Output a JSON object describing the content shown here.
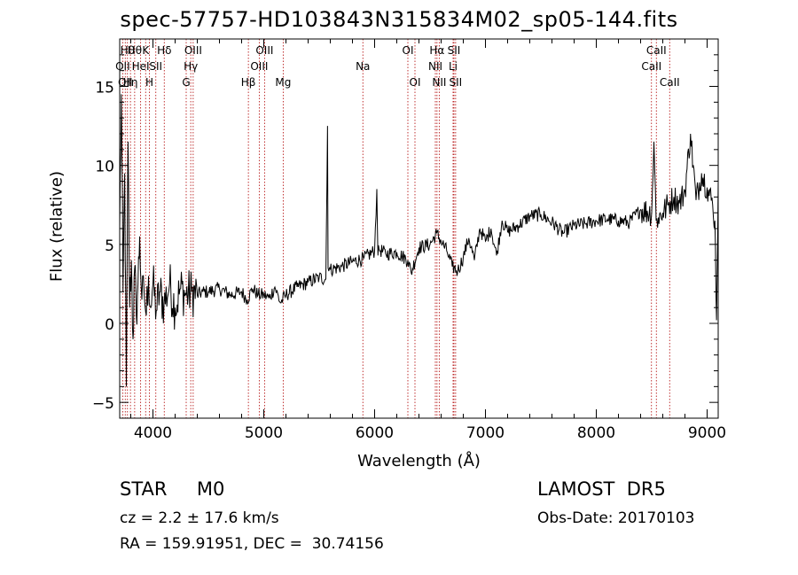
{
  "chart_data": {
    "type": "line",
    "title": "spec-57757-HD103843N315834M02_sp05-144.fits",
    "xlabel": "Wavelength (Å)",
    "ylabel": "Flux (relative)",
    "xlim": [
      3700,
      9100
    ],
    "ylim": [
      -6,
      18
    ],
    "x_ticks": [
      4000,
      5000,
      6000,
      7000,
      8000,
      9000
    ],
    "y_ticks": [
      -5,
      0,
      5,
      10,
      15
    ],
    "grid": false,
    "series": [
      {
        "x": [
          3700,
          3715,
          3730,
          3745,
          3760,
          3775,
          3790,
          3805,
          3820,
          3835,
          3850,
          3865,
          3880,
          3900,
          3920,
          3940,
          3960,
          3980,
          4000,
          4030,
          4060,
          4100,
          4150,
          4200,
          4250,
          4300,
          4350,
          4400,
          4450,
          4500,
          4600,
          4700,
          4800,
          4850,
          4900,
          4950,
          5000,
          5050,
          5100,
          5150,
          5200,
          5300,
          5400,
          5500,
          5560,
          5575,
          5580,
          5600,
          5700,
          5800,
          5900,
          6000,
          6020,
          6030,
          6040,
          6100,
          6200,
          6300,
          6330,
          6400,
          6500,
          6560,
          6600,
          6650,
          6700,
          6750,
          6800,
          6850,
          6900,
          6950,
          7000,
          7050,
          7100,
          7150,
          7200,
          7300,
          7400,
          7500,
          7600,
          7700,
          7800,
          7900,
          8000,
          8100,
          8200,
          8300,
          8400,
          8500,
          8520,
          8540,
          8560,
          8600,
          8650,
          8700,
          8750,
          8800,
          8850,
          8900,
          8950,
          9000,
          9050,
          9070,
          9085,
          9100
        ],
        "y": [
          6.0,
          14.5,
          2.0,
          9.5,
          -4.0,
          11.5,
          1.0,
          4.0,
          -1.0,
          3.5,
          0.5,
          2.5,
          5.5,
          1.5,
          2.0,
          0.5,
          3.0,
          1.0,
          2.5,
          0.8,
          2.0,
          1.2,
          2.5,
          1.0,
          2.2,
          1.8,
          2.0,
          1.8,
          2.0,
          2.0,
          2.2,
          1.8,
          2.0,
          1.5,
          2.2,
          1.8,
          1.8,
          1.6,
          2.3,
          1.3,
          1.8,
          2.3,
          2.6,
          2.9,
          2.8,
          12.5,
          3.5,
          3.4,
          3.6,
          3.9,
          4.1,
          4.6,
          8.5,
          4.3,
          4.7,
          4.4,
          4.5,
          4.0,
          3.2,
          4.8,
          5.0,
          5.7,
          5.2,
          4.6,
          3.6,
          3.3,
          4.2,
          5.4,
          4.0,
          6.0,
          5.2,
          6.0,
          4.3,
          6.5,
          5.8,
          6.2,
          6.8,
          6.9,
          6.4,
          5.7,
          6.2,
          6.3,
          6.5,
          6.6,
          6.5,
          6.4,
          7.2,
          7.0,
          11.5,
          6.5,
          6.7,
          7.0,
          7.5,
          8.0,
          7.6,
          8.4,
          12.0,
          7.8,
          9.5,
          8.6,
          7.5,
          6.5,
          0.2,
          9.0
        ]
      }
    ],
    "line_markers": [
      {
        "wl": 3727,
        "label": "OII",
        "row": 1
      },
      {
        "wl": 3750,
        "label": "OII",
        "row": 2
      },
      {
        "wl": 3770,
        "label": "Hθ",
        "row": 0
      },
      {
        "wl": 3797,
        "label": "Hη",
        "row": 2
      },
      {
        "wl": 3835,
        "label": "Hθ",
        "row": 0
      },
      {
        "wl": 3889,
        "label": "HeI",
        "row": 1
      },
      {
        "wl": 3934,
        "label": "K",
        "row": 0
      },
      {
        "wl": 3968,
        "label": "H",
        "row": 2
      },
      {
        "wl": 4026,
        "label": "SII",
        "row": 1
      },
      {
        "wl": 4102,
        "label": "Hδ",
        "row": 0
      },
      {
        "wl": 4300,
        "label": "G",
        "row": 2
      },
      {
        "wl": 4341,
        "label": "Hγ",
        "row": 1
      },
      {
        "wl": 4363,
        "label": "OIII",
        "row": 0
      },
      {
        "wl": 4861,
        "label": "Hβ",
        "row": 2
      },
      {
        "wl": 4959,
        "label": "OIII",
        "row": 1
      },
      {
        "wl": 5007,
        "label": "OIII",
        "row": 0
      },
      {
        "wl": 5175,
        "label": "Mg",
        "row": 2
      },
      {
        "wl": 5894,
        "label": "Na",
        "row": 1
      },
      {
        "wl": 6300,
        "label": "OI",
        "row": 0
      },
      {
        "wl": 6364,
        "label": "OI",
        "row": 2
      },
      {
        "wl": 6548,
        "label": "NII",
        "row": 1
      },
      {
        "wl": 6563,
        "label": "Hα",
        "row": 0
      },
      {
        "wl": 6583,
        "label": "NII",
        "row": 2
      },
      {
        "wl": 6708,
        "label": "Li",
        "row": 1
      },
      {
        "wl": 6716,
        "label": "SII",
        "row": 0
      },
      {
        "wl": 6731,
        "label": "SII",
        "row": 2
      },
      {
        "wl": 8498,
        "label": "CaII",
        "row": 1
      },
      {
        "wl": 8542,
        "label": "CaII",
        "row": 0
      },
      {
        "wl": 8662,
        "label": "CaII",
        "row": 2
      }
    ]
  },
  "info": {
    "star_class": "STAR     M0",
    "survey": "LAMOST  DR5",
    "cz": "cz = 2.2 ± 17.6 km/s",
    "obs_date": "Obs-Date: 20170103",
    "radec": "RA = 159.91951, DEC =  30.74156"
  }
}
